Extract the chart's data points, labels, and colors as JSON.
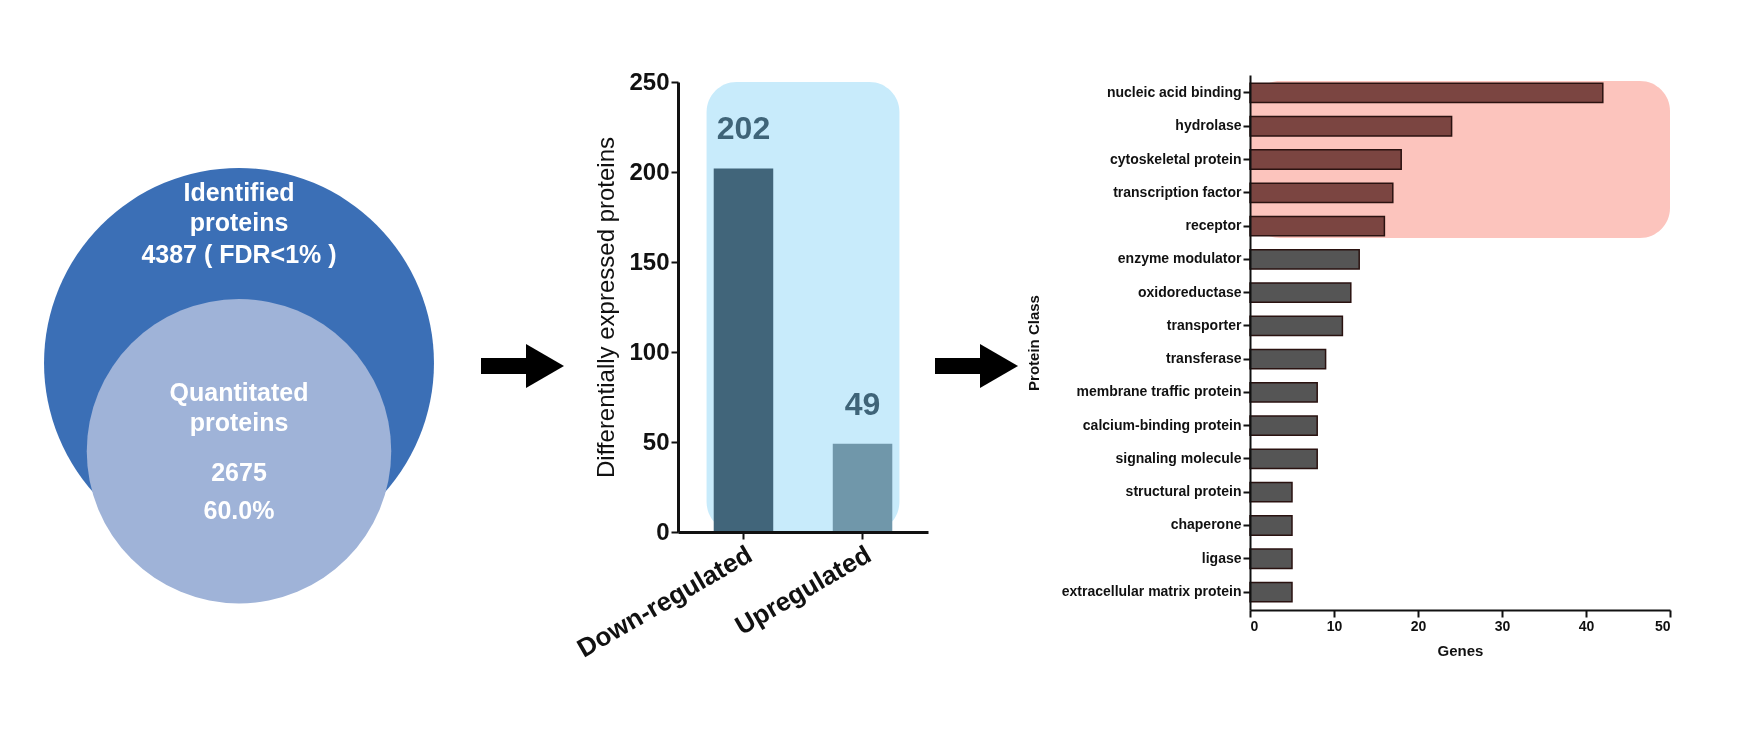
{
  "chart_data": [
    {
      "type": "other",
      "categories": [
        "Identified proteins",
        "Quantitated proteins"
      ],
      "values": [
        4387,
        2675
      ],
      "value_labels": [
        "4387 ( FDR<1% )",
        "2675"
      ],
      "colors": [
        "#3b6fb6",
        "#9fb3d8"
      ],
      "annotations": [
        "60.0%"
      ]
    },
    {
      "type": "bar",
      "ylabel": "Differentially expressed proteins",
      "categories": [
        "Down-regulated",
        "Upregulated"
      ],
      "values": [
        202,
        49
      ],
      "colors": [
        "#41657a",
        "#7097aa"
      ],
      "ylim": [
        0,
        250
      ],
      "yticks": [
        0,
        50,
        100,
        150,
        200,
        250
      ],
      "data_labels": true,
      "bands": [
        {
          "axis": "x",
          "from": "Down-regulated",
          "to": "Upregulated",
          "color": "#c8ebfb"
        }
      ]
    },
    {
      "type": "bar",
      "orientation": "horizontal",
      "xlabel": "Genes",
      "ylabel": "Protein Class",
      "categories": [
        "nucleic acid binding",
        "hydrolase",
        "cytoskeletal protein",
        "transcription factor",
        "receptor",
        "enzyme modulator",
        "oxidoreductase",
        "transporter",
        "transferase",
        "membrane traffic protein",
        "calcium-binding protein",
        "signaling molecule",
        "structural protein",
        "chaperone",
        "ligase",
        "extracellular matrix protein"
      ],
      "values": [
        42,
        24,
        18,
        17,
        16,
        13,
        12,
        11,
        9,
        8,
        8,
        8,
        5,
        5,
        5,
        5
      ],
      "colors": [
        "#7b4541",
        "#7b4541",
        "#7b4541",
        "#7b4541",
        "#7b4541",
        "#555555",
        "#555555",
        "#555555",
        "#555555",
        "#555555",
        "#555555",
        "#555555",
        "#555555",
        "#555555",
        "#555555",
        "#555555"
      ],
      "xlim": [
        0,
        50
      ],
      "xticks": [
        0,
        10,
        20,
        30,
        40,
        50
      ],
      "bands": [
        {
          "axis": "y",
          "from": "nucleic acid binding",
          "to": "receptor",
          "color": "#fcc4bd"
        }
      ]
    }
  ]
}
